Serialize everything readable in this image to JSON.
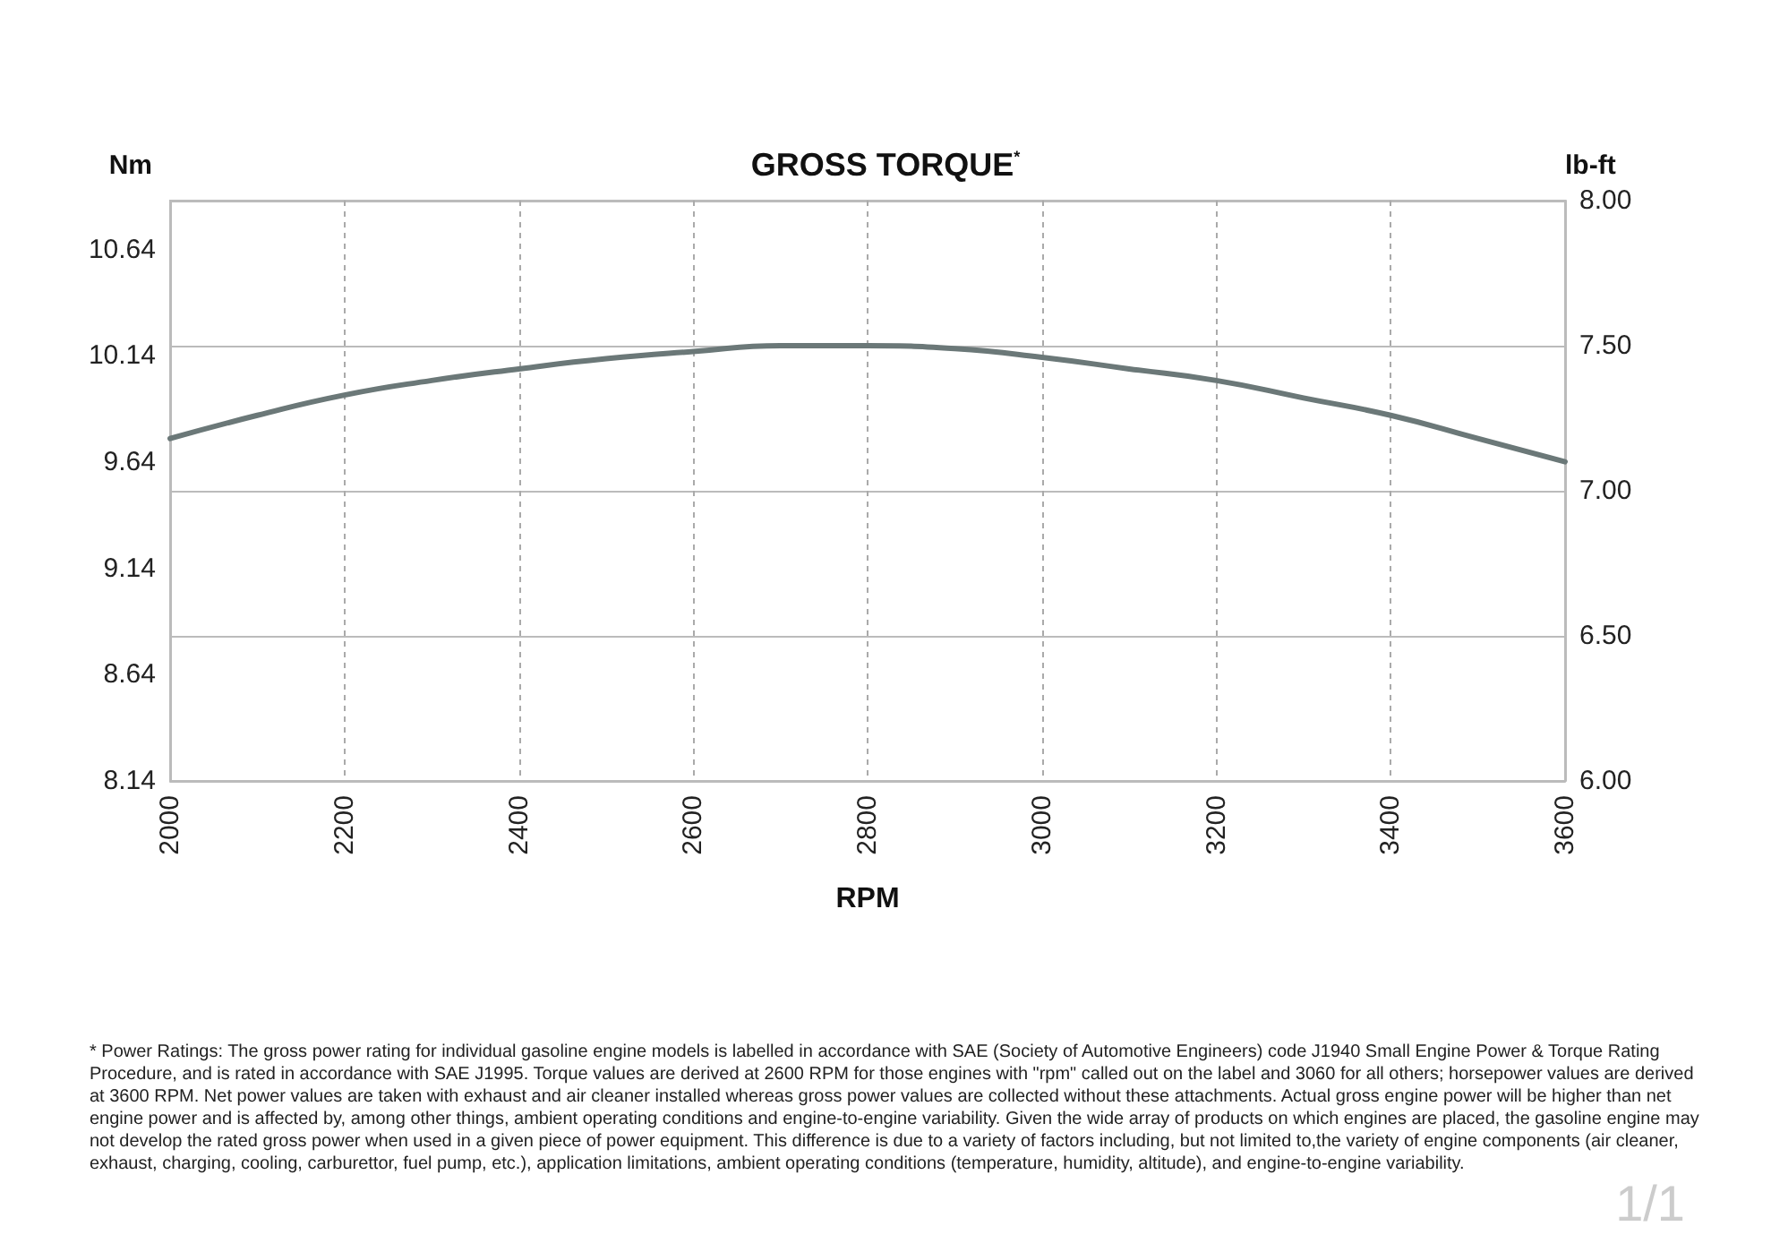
{
  "chart_data": {
    "type": "line",
    "title": "GROSS TORQUE$^{*}$",
    "xlabel": "RPM",
    "ylabel": "Nm",
    "y2label": "lb-ft",
    "x": [
      2000,
      2100,
      2200,
      2300,
      2400,
      2500,
      2600,
      2700,
      2800,
      2900,
      3000,
      3100,
      3200,
      3300,
      3400,
      3500,
      3600
    ],
    "series": [
      {
        "color": "#6b7878",
        "axis": "y2",
        "values": [
          7.18,
          7.26,
          7.33,
          7.38,
          7.42,
          7.455,
          7.48,
          7.5,
          7.5,
          7.49,
          7.46,
          7.42,
          7.38,
          7.32,
          7.26,
          7.18,
          7.1
        ]
      }
    ],
    "xlim": [
      2000,
      3600
    ],
    "xticks": [
      2000,
      2200,
      2400,
      2600,
      2800,
      3000,
      3200,
      3400,
      3600
    ],
    "ylim": [
      8.14,
      10.87
    ],
    "yticks": [
      8.14,
      8.64,
      9.14,
      9.64,
      10.14,
      10.64
    ],
    "y2lim": [
      6,
      8
    ],
    "y2ticks": [
      {
        "value": 6,
        "label": "6.00"
      },
      {
        "value": 6.5,
        "label": "6.50"
      },
      {
        "value": 7,
        "label": "7.00"
      },
      {
        "value": 7.5,
        "label": "7.50"
      },
      {
        "value": 8,
        "label": "8.00"
      }
    ],
    "grid": true,
    "marker": "none",
    "line_style": "solid",
    "annotations": [
      "* Power Ratings: The gross power rating for individual gasoline engine models is labelled in accordance with SAE (Society of Automotive Engineers) code J1940 Small Engine Power & Torque Rating Procedure, and is rated in accordance with SAE J1995. Torque values are derived at 2600 RPM for those engines with \"rpm\" called out on the label and 3060 for all others; horsepower values are derived at 3600 RPM. Net power values are taken with exhaust and air cleaner installed whereas gross power values are collected without these attachments. Actual gross engine power will be higher than net engine power and is affected by, among other things, ambient operating conditions and engine-to-engine variability. Given the wide array of products on which engines are placed, the gasoline engine may not develop the rated gross power when used in a given piece of power equipment. This difference is due to a variety of factors including, but not limited to,the variety of engine components (air cleaner, exhaust, charging, cooling, carburettor, fuel pump, etc.), application limitations, ambient operating conditions (temperature, humidity, altitude), and engine-to-engine variability.",
      "1/1"
    ]
  }
}
